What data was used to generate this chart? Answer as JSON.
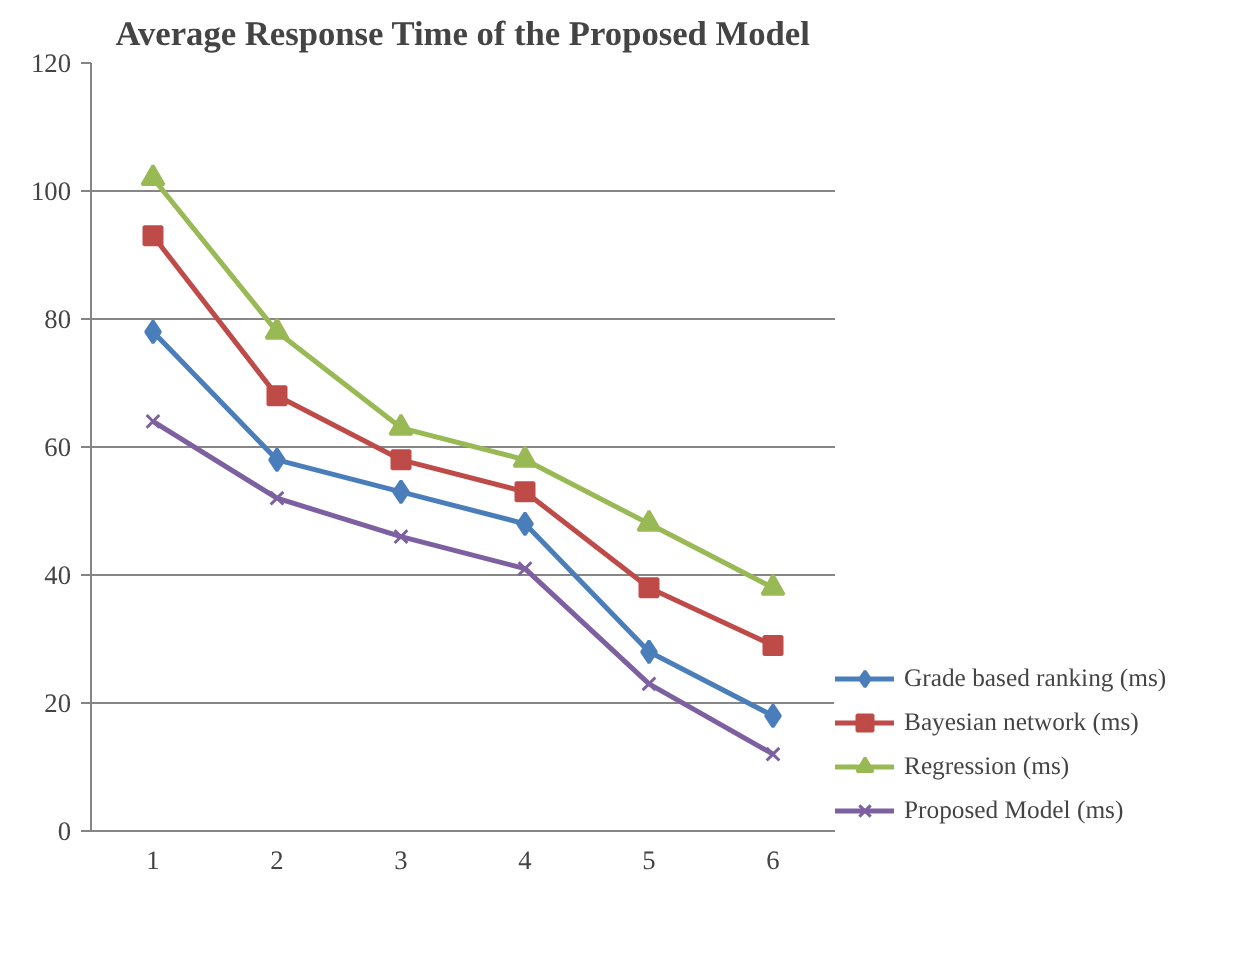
{
  "chart_data": {
    "type": "line",
    "title": "Average Response Time of the Proposed Model",
    "categories": [
      "1",
      "2",
      "3",
      "4",
      "5",
      "6"
    ],
    "series": [
      {
        "name": "Grade based ranking (ms)",
        "color": "#4a7ebb",
        "marker": "diamond",
        "values": [
          78,
          58,
          53,
          48,
          28,
          18
        ]
      },
      {
        "name": "Bayesian network (ms)",
        "color": "#be4b48",
        "marker": "square",
        "values": [
          93,
          68,
          58,
          53,
          38,
          29
        ]
      },
      {
        "name": "Regression (ms)",
        "color": "#98b954",
        "marker": "triangle",
        "values": [
          102,
          78,
          63,
          58,
          48,
          38
        ]
      },
      {
        "name": "Proposed Model (ms)",
        "color": "#7d60a0",
        "marker": "cross",
        "values": [
          64,
          52,
          46,
          41,
          23,
          12
        ]
      }
    ],
    "ylim": [
      0,
      120
    ],
    "yticks": [
      0,
      20,
      40,
      60,
      80,
      100,
      120
    ],
    "grid": "y",
    "legend": "right"
  }
}
